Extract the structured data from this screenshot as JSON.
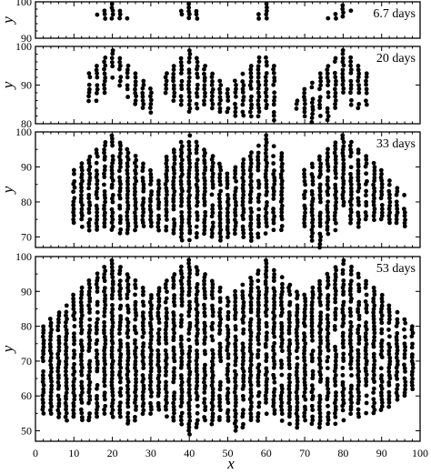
{
  "chart_data": {
    "type": "scatter",
    "xlabel": "x",
    "ylabel": "y",
    "xlim": [
      0,
      100
    ],
    "x_ticks": [
      "0",
      "10",
      "20",
      "30",
      "40",
      "50",
      "60",
      "70",
      "80",
      "90",
      "100"
    ],
    "colors": {
      "points": "#000000",
      "frame": "#000000",
      "background": "#ffffff"
    },
    "marker": "filled-circle",
    "grid": false,
    "legend": "none",
    "panels": [
      {
        "label": "6.7 days",
        "ylim": [
          90,
          100
        ],
        "y_ticks": [
          "90",
          "100"
        ],
        "clusters": [
          {
            "apex_x": 20,
            "apex_y": 100,
            "columns": [
              [
                16,
                96.5
              ],
              [
                18,
                95.5
              ],
              [
                20,
                95.5
              ],
              [
                22,
                95.5
              ],
              [
                24,
                95.5
              ]
            ]
          },
          {
            "apex_x": 40,
            "apex_y": 100,
            "columns": [
              [
                38,
                96.5
              ],
              [
                40,
                95.5
              ],
              [
                42,
                95.5
              ]
            ]
          },
          {
            "apex_x": 60,
            "apex_y": 99.5,
            "columns": [
              [
                58,
                95.5
              ],
              [
                60,
                95.5
              ]
            ]
          },
          {
            "apex_x": 80,
            "apex_y": 99.5,
            "columns": [
              [
                76,
                95.5
              ],
              [
                78,
                95.5
              ],
              [
                80,
                96
              ],
              [
                82,
                97.5
              ]
            ]
          }
        ]
      },
      {
        "label": "20 days",
        "ylim": [
          80,
          100
        ],
        "y_ticks": [
          "80",
          "90",
          "100"
        ],
        "clusters": [
          {
            "apex_x": 20,
            "apex_y": 99.5,
            "columns": [
              [
                14,
                86
              ],
              [
                16,
                86
              ],
              [
                18,
                88
              ],
              [
                20,
                92
              ],
              [
                22,
                90
              ],
              [
                24,
                87
              ],
              [
                26,
                85
              ],
              [
                28,
                84
              ],
              [
                30,
                83
              ]
            ]
          },
          {
            "apex_x": 40,
            "apex_y": 99.5,
            "columns": [
              [
                34,
                88
              ],
              [
                36,
                86
              ],
              [
                38,
                85
              ],
              [
                40,
                83
              ],
              [
                42,
                84
              ],
              [
                44,
                85
              ],
              [
                46,
                84
              ],
              [
                48,
                83
              ]
            ]
          },
          {
            "apex_x": 59,
            "apex_y": 99,
            "columns": [
              [
                50,
                83
              ],
              [
                52,
                82
              ],
              [
                54,
                82
              ],
              [
                56,
                82
              ],
              [
                58,
                82
              ],
              [
                60,
                84
              ],
              [
                62,
                81
              ]
            ]
          },
          {
            "apex_x": 80,
            "apex_y": 99.5,
            "columns": [
              [
                68,
                84
              ],
              [
                70,
                82
              ],
              [
                72,
                80.5
              ],
              [
                74,
                82
              ],
              [
                76,
                81
              ],
              [
                78,
                84
              ],
              [
                80,
                88
              ],
              [
                82,
                85
              ],
              [
                84,
                84
              ],
              [
                86,
                85
              ]
            ]
          }
        ]
      },
      {
        "label": "33 days",
        "ylim": [
          67,
          100
        ],
        "y_ticks": [
          "70",
          "80",
          "90",
          "100"
        ],
        "clusters": [
          {
            "apex_x": 20,
            "apex_y": 99.5,
            "columns": [
              [
                10,
                74
              ],
              [
                12,
                73
              ],
              [
                14,
                72
              ],
              [
                16,
                72
              ],
              [
                18,
                73
              ],
              [
                20,
                72
              ],
              [
                22,
                71
              ],
              [
                24,
                71
              ],
              [
                26,
                72
              ],
              [
                28,
                73
              ],
              [
                30,
                73
              ],
              [
                32,
                72
              ]
            ]
          },
          {
            "apex_x": 40,
            "apex_y": 99.5,
            "columns": [
              [
                34,
                72
              ],
              [
                36,
                71
              ],
              [
                38,
                69
              ],
              [
                40,
                69
              ],
              [
                42,
                70
              ],
              [
                44,
                71
              ],
              [
                46,
                70
              ],
              [
                48,
                69
              ]
            ]
          },
          {
            "apex_x": 60,
            "apex_y": 99,
            "columns": [
              [
                50,
                70
              ],
              [
                52,
                71
              ],
              [
                54,
                70
              ],
              [
                56,
                69
              ],
              [
                58,
                70
              ],
              [
                60,
                71
              ],
              [
                62,
                72
              ],
              [
                64,
                72
              ]
            ]
          },
          {
            "apex_x": 80,
            "apex_y": 99.5,
            "columns": [
              [
                70,
                73
              ],
              [
                72,
                69
              ],
              [
                74,
                67
              ],
              [
                76,
                71
              ],
              [
                78,
                72
              ],
              [
                80,
                79
              ],
              [
                82,
                74
              ],
              [
                84,
                73
              ],
              [
                86,
                75
              ],
              [
                88,
                75
              ],
              [
                90,
                75
              ],
              [
                92,
                74
              ],
              [
                94,
                74
              ],
              [
                96,
                73
              ]
            ]
          }
        ]
      },
      {
        "label": "53 days",
        "ylim": [
          47,
          100
        ],
        "y_ticks": [
          "50",
          "60",
          "70",
          "80",
          "90",
          "100"
        ],
        "clusters": [
          {
            "apex_x": 20,
            "apex_y": 99.5,
            "columns": [
              [
                2,
                55
              ],
              [
                4,
                55
              ],
              [
                6,
                54
              ],
              [
                8,
                53
              ],
              [
                10,
                54
              ],
              [
                12,
                53
              ],
              [
                14,
                53
              ],
              [
                16,
                54
              ],
              [
                18,
                55
              ],
              [
                20,
                54
              ],
              [
                22,
                54
              ],
              [
                24,
                52
              ],
              [
                26,
                53
              ],
              [
                28,
                55
              ],
              [
                30,
                55
              ]
            ]
          },
          {
            "apex_x": 40,
            "apex_y": 99.5,
            "columns": [
              [
                32,
                56
              ],
              [
                34,
                54
              ],
              [
                36,
                53
              ],
              [
                38,
                52
              ],
              [
                40,
                49
              ],
              [
                42,
                51
              ],
              [
                44,
                53
              ],
              [
                46,
                52
              ],
              [
                48,
                53
              ]
            ]
          },
          {
            "apex_x": 60,
            "apex_y": 99,
            "columns": [
              [
                50,
                53
              ],
              [
                52,
                50
              ],
              [
                54,
                51
              ],
              [
                56,
                53
              ],
              [
                58,
                53
              ],
              [
                60,
                55
              ],
              [
                62,
                55
              ],
              [
                64,
                53
              ],
              [
                66,
                52
              ],
              [
                68,
                51
              ]
            ]
          },
          {
            "apex_x": 80,
            "apex_y": 99.5,
            "columns": [
              [
                70,
                53
              ],
              [
                72,
                52
              ],
              [
                74,
                51
              ],
              [
                76,
                52
              ],
              [
                78,
                52
              ],
              [
                80,
                53
              ],
              [
                82,
                55
              ],
              [
                84,
                54
              ],
              [
                86,
                55
              ],
              [
                88,
                55
              ],
              [
                90,
                56
              ],
              [
                92,
                57
              ],
              [
                94,
                59
              ],
              [
                96,
                60
              ],
              [
                98,
                62
              ]
            ]
          }
        ]
      }
    ]
  }
}
